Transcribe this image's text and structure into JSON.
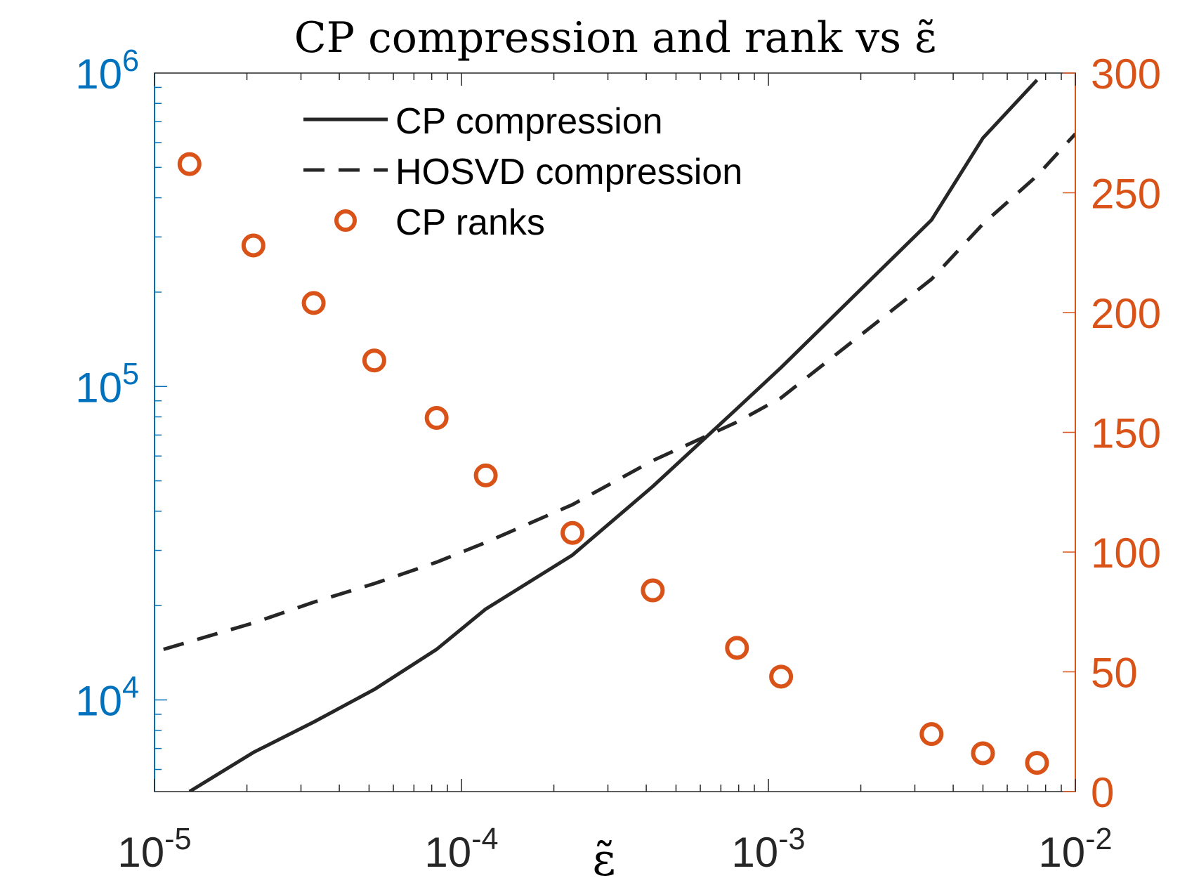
{
  "chart_data": {
    "type": "line",
    "title": "CP compression and rank vs ε̃",
    "xlabel": "ε̃",
    "ylabel": "",
    "y2label": "",
    "xscale": "log",
    "xlim": [
      1e-05,
      0.01
    ],
    "x_ticks": [
      {
        "value": 1e-05,
        "base": "10",
        "exp": "-5"
      },
      {
        "value": 0.0001,
        "base": "10",
        "exp": "-4"
      },
      {
        "value": 0.001,
        "base": "10",
        "exp": "-3"
      },
      {
        "value": 0.01,
        "base": "10",
        "exp": "-2"
      }
    ],
    "yscale": "log",
    "ylim": [
      5100,
      1000000
    ],
    "y_ticks": [
      {
        "value": 10000,
        "base": "10",
        "exp": "4"
      },
      {
        "value": 100000,
        "base": "10",
        "exp": "5"
      },
      {
        "value": 1000000,
        "base": "10",
        "exp": "6"
      }
    ],
    "y2scale": "linear",
    "y2lim": [
      0,
      300
    ],
    "y2_ticks": [
      "0",
      "50",
      "100",
      "150",
      "200",
      "250",
      "300"
    ],
    "grid": false,
    "legend_position": "top-left",
    "colors": {
      "left_axis": "#0072BD",
      "right_axis": "#D95319",
      "lines": "#262626",
      "frame": "#262626"
    },
    "series": [
      {
        "name": "CP compression",
        "axis": "left",
        "style": "solid",
        "x": [
          1.3e-05,
          2.1e-05,
          3.3e-05,
          5.2e-05,
          8.3e-05,
          0.00012,
          0.00023,
          0.00042,
          0.00079,
          0.0011,
          0.0034,
          0.005,
          0.0075
        ],
        "y": [
          5100,
          6800,
          8500,
          10800,
          14500,
          19500,
          29000,
          48000,
          85000,
          115000,
          340000,
          620000,
          950000
        ]
      },
      {
        "name": "HOSVD compression",
        "axis": "left",
        "style": "dashed",
        "x": [
          1.07e-05,
          2.1e-05,
          3.3e-05,
          5.2e-05,
          8.3e-05,
          0.00012,
          0.00023,
          0.00042,
          0.00079,
          0.0011,
          0.0034,
          0.005,
          0.0075,
          0.01
        ],
        "y": [
          14500,
          17600,
          20500,
          23500,
          27500,
          31800,
          42000,
          58000,
          77000,
          92000,
          220000,
          330000,
          470000,
          640000
        ]
      },
      {
        "name": "CP ranks",
        "axis": "right",
        "style": "markers",
        "x": [
          1.3e-05,
          2.1e-05,
          3.3e-05,
          5.2e-05,
          8.3e-05,
          0.00012,
          0.00023,
          0.00042,
          0.00079,
          0.0011,
          0.0034,
          0.005,
          0.0075
        ],
        "y": [
          262,
          228,
          204,
          180,
          156,
          132,
          108,
          84,
          60,
          48,
          24,
          16,
          12
        ]
      }
    ]
  }
}
